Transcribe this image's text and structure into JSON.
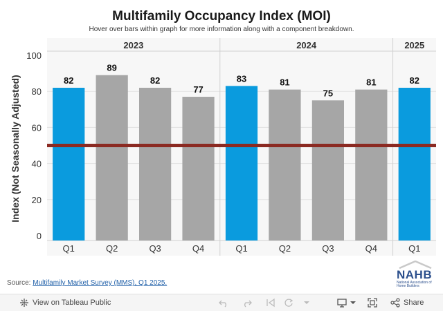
{
  "title": "Multifamily Occupancy Index (MOI)",
  "subtitle": "Hover over bars within graph for more information along with a component breakdown.",
  "source": {
    "prefix": "Source: ",
    "link_text": "Multifamily Market Survey (MMS), Q1 2025."
  },
  "logo": {
    "name": "NAHB",
    "tagline": "National Association of Home Builders"
  },
  "toolbar": {
    "view_label": "View on Tableau Public",
    "share_label": "Share",
    "icons": [
      "undo-icon",
      "redo-icon",
      "revert-icon",
      "refresh-icon",
      "download-icon",
      "fullscreen-icon",
      "share-icon"
    ]
  },
  "colors": {
    "highlight": "#0a9bde",
    "bar": "#a6a6a6",
    "reference_line": "#8b2a22",
    "panel_bg": "#f7f7f7"
  },
  "chart_data": {
    "type": "bar",
    "title": "Multifamily Occupancy Index (MOI)",
    "ylabel": "Index (Not Seasonally Adjusted)",
    "ylim": [
      0,
      100
    ],
    "yticks": [
      0,
      20,
      40,
      60,
      80,
      100
    ],
    "reference_line": 50,
    "grid": true,
    "panels": [
      {
        "year": "2023",
        "categories": [
          "Q1",
          "Q2",
          "Q3",
          "Q4"
        ],
        "values": [
          82,
          89,
          82,
          77
        ],
        "highlight": [
          true,
          false,
          false,
          false
        ]
      },
      {
        "year": "2024",
        "categories": [
          "Q1",
          "Q2",
          "Q3",
          "Q4"
        ],
        "values": [
          83,
          81,
          75,
          81
        ],
        "highlight": [
          true,
          false,
          false,
          false
        ]
      },
      {
        "year": "2025",
        "categories": [
          "Q1"
        ],
        "values": [
          82
        ],
        "highlight": [
          true
        ]
      }
    ]
  }
}
